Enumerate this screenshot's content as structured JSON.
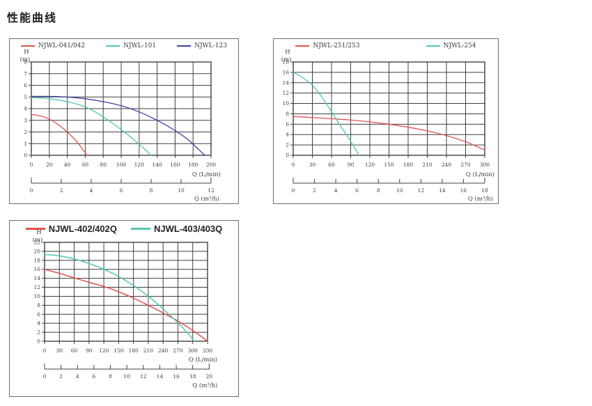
{
  "page": {
    "title": "性能曲线"
  },
  "colors": {
    "red": "#e25150",
    "teal": "#4fc8b0",
    "blue": "#3c41a0",
    "grid": "#3f3f3f",
    "axis_text": "#3a3a3a",
    "panel_border": "#6e6e6e"
  },
  "chart_data": [
    {
      "type": "line",
      "legend_entries": [
        {
          "label": "NJWL-041/042",
          "color": "#e25150"
        },
        {
          "label": "NJWL-101",
          "color": "#4fc8b0"
        },
        {
          "label": "NJWL-123",
          "color": "#3c41a0"
        }
      ],
      "axes": {
        "y_label_line1": "H",
        "y_label_line2": "(m)",
        "x_label": "Q (L/min)",
        "x2_label": "Q (m³/h)",
        "x_min": 0,
        "x_max": 200,
        "y_min": 0,
        "y_max": 8,
        "x_ticks": [
          0,
          20,
          40,
          60,
          80,
          100,
          120,
          140,
          160,
          180,
          200
        ],
        "y_ticks": [
          0,
          1,
          2,
          3,
          4,
          5,
          6,
          7,
          8
        ],
        "x2_ticks": [
          0,
          2,
          4,
          6,
          8,
          10,
          12
        ],
        "x2_max": 12
      },
      "series": [
        {
          "name": "NJWL-041/042",
          "color": "#e25150",
          "points": [
            [
              0,
              3.5
            ],
            [
              10,
              3.38
            ],
            [
              20,
              3.1
            ],
            [
              30,
              2.62
            ],
            [
              40,
              2.0
            ],
            [
              50,
              1.22
            ],
            [
              56,
              0.62
            ],
            [
              62,
              0
            ]
          ]
        },
        {
          "name": "NJWL-101",
          "color": "#4fc8b0",
          "points": [
            [
              0,
              4.95
            ],
            [
              20,
              4.85
            ],
            [
              40,
              4.6
            ],
            [
              60,
              4.15
            ],
            [
              80,
              3.3
            ],
            [
              100,
              2.2
            ],
            [
              115,
              1.28
            ],
            [
              125,
              0.6
            ],
            [
              133,
              0
            ]
          ]
        },
        {
          "name": "NJWL-123",
          "color": "#3c41a0",
          "points": [
            [
              0,
              5.05
            ],
            [
              20,
              5.05
            ],
            [
              40,
              5.0
            ],
            [
              60,
              4.85
            ],
            [
              80,
              4.6
            ],
            [
              100,
              4.25
            ],
            [
              120,
              3.72
            ],
            [
              140,
              3.0
            ],
            [
              160,
              2.12
            ],
            [
              175,
              1.3
            ],
            [
              193,
              0
            ]
          ]
        }
      ]
    },
    {
      "type": "line",
      "legend_entries": [
        {
          "label": "NJWL-251/253",
          "color": "#e25150"
        },
        {
          "label": "NJWL-254",
          "color": "#4fc8b0"
        }
      ],
      "axes": {
        "y_label_line1": "H",
        "y_label_line2": "(m)",
        "x_label": "Q (L/min)",
        "x2_label": "Q (m³/h)",
        "x_min": 0,
        "x_max": 300,
        "y_min": 0,
        "y_max": 18,
        "x_ticks": [
          0,
          30,
          60,
          90,
          120,
          150,
          180,
          210,
          240,
          270,
          300
        ],
        "y_ticks": [
          0,
          2,
          4,
          6,
          8,
          10,
          12,
          14,
          16,
          18
        ],
        "x2_ticks": [
          0,
          2,
          4,
          6,
          8,
          10,
          12,
          14,
          16,
          18
        ],
        "x2_max": 18
      },
      "series": [
        {
          "name": "NJWL-251/253",
          "color": "#e25150",
          "points": [
            [
              0,
              7.5
            ],
            [
              30,
              7.28
            ],
            [
              60,
              7.05
            ],
            [
              90,
              6.8
            ],
            [
              120,
              6.45
            ],
            [
              150,
              6.0
            ],
            [
              180,
              5.42
            ],
            [
              210,
              4.7
            ],
            [
              240,
              3.8
            ],
            [
              270,
              2.62
            ],
            [
              300,
              1.0
            ]
          ]
        },
        {
          "name": "NJWL-254",
          "color": "#4fc8b0",
          "points": [
            [
              0,
              16
            ],
            [
              15,
              14.95
            ],
            [
              30,
              13.5
            ],
            [
              45,
              11.2
            ],
            [
              60,
              8.4
            ],
            [
              75,
              5.5
            ],
            [
              90,
              2.7
            ],
            [
              103,
              0
            ]
          ]
        }
      ]
    },
    {
      "type": "line",
      "legend_entries": [
        {
          "label": "NJWL-402/402Q",
          "color": "#e25150"
        },
        {
          "label": "NJWL-403/403Q",
          "color": "#4fc8b0"
        }
      ],
      "axes": {
        "y_label_line1": "H",
        "y_label_line2": "(m)",
        "x_label": "Q (L/min)",
        "x2_label": "Q (m³/h)",
        "x_min": 0,
        "x_max": 330,
        "y_min": 0,
        "y_max": 22,
        "x_ticks": [
          0,
          30,
          60,
          90,
          120,
          150,
          180,
          210,
          240,
          270,
          300,
          330
        ],
        "y_ticks": [
          0,
          2,
          4,
          6,
          8,
          10,
          12,
          14,
          16,
          18,
          20,
          22
        ],
        "x2_ticks": [
          0,
          2,
          4,
          6,
          8,
          10,
          12,
          14,
          16,
          18,
          20
        ],
        "x2_max": 20
      },
      "series": [
        {
          "name": "NJWL-402/402Q",
          "color": "#e25150",
          "points": [
            [
              0,
              16
            ],
            [
              30,
              15.1
            ],
            [
              60,
              14.1
            ],
            [
              90,
              13.1
            ],
            [
              120,
              12.2
            ],
            [
              150,
              11.0
            ],
            [
              180,
              9.6
            ],
            [
              210,
              8.0
            ],
            [
              240,
              6.3
            ],
            [
              270,
              4.5
            ],
            [
              300,
              2.4
            ],
            [
              330,
              0
            ]
          ]
        },
        {
          "name": "NJWL-403/403Q",
          "color": "#4fc8b0",
          "points": [
            [
              0,
              19.3
            ],
            [
              30,
              19.0
            ],
            [
              60,
              18.3
            ],
            [
              90,
              17.3
            ],
            [
              120,
              16.0
            ],
            [
              150,
              14.4
            ],
            [
              180,
              12.4
            ],
            [
              210,
              10.0
            ],
            [
              240,
              7.2
            ],
            [
              270,
              4.1
            ],
            [
              290,
              1.8
            ],
            [
              303,
              0
            ]
          ]
        }
      ]
    }
  ]
}
